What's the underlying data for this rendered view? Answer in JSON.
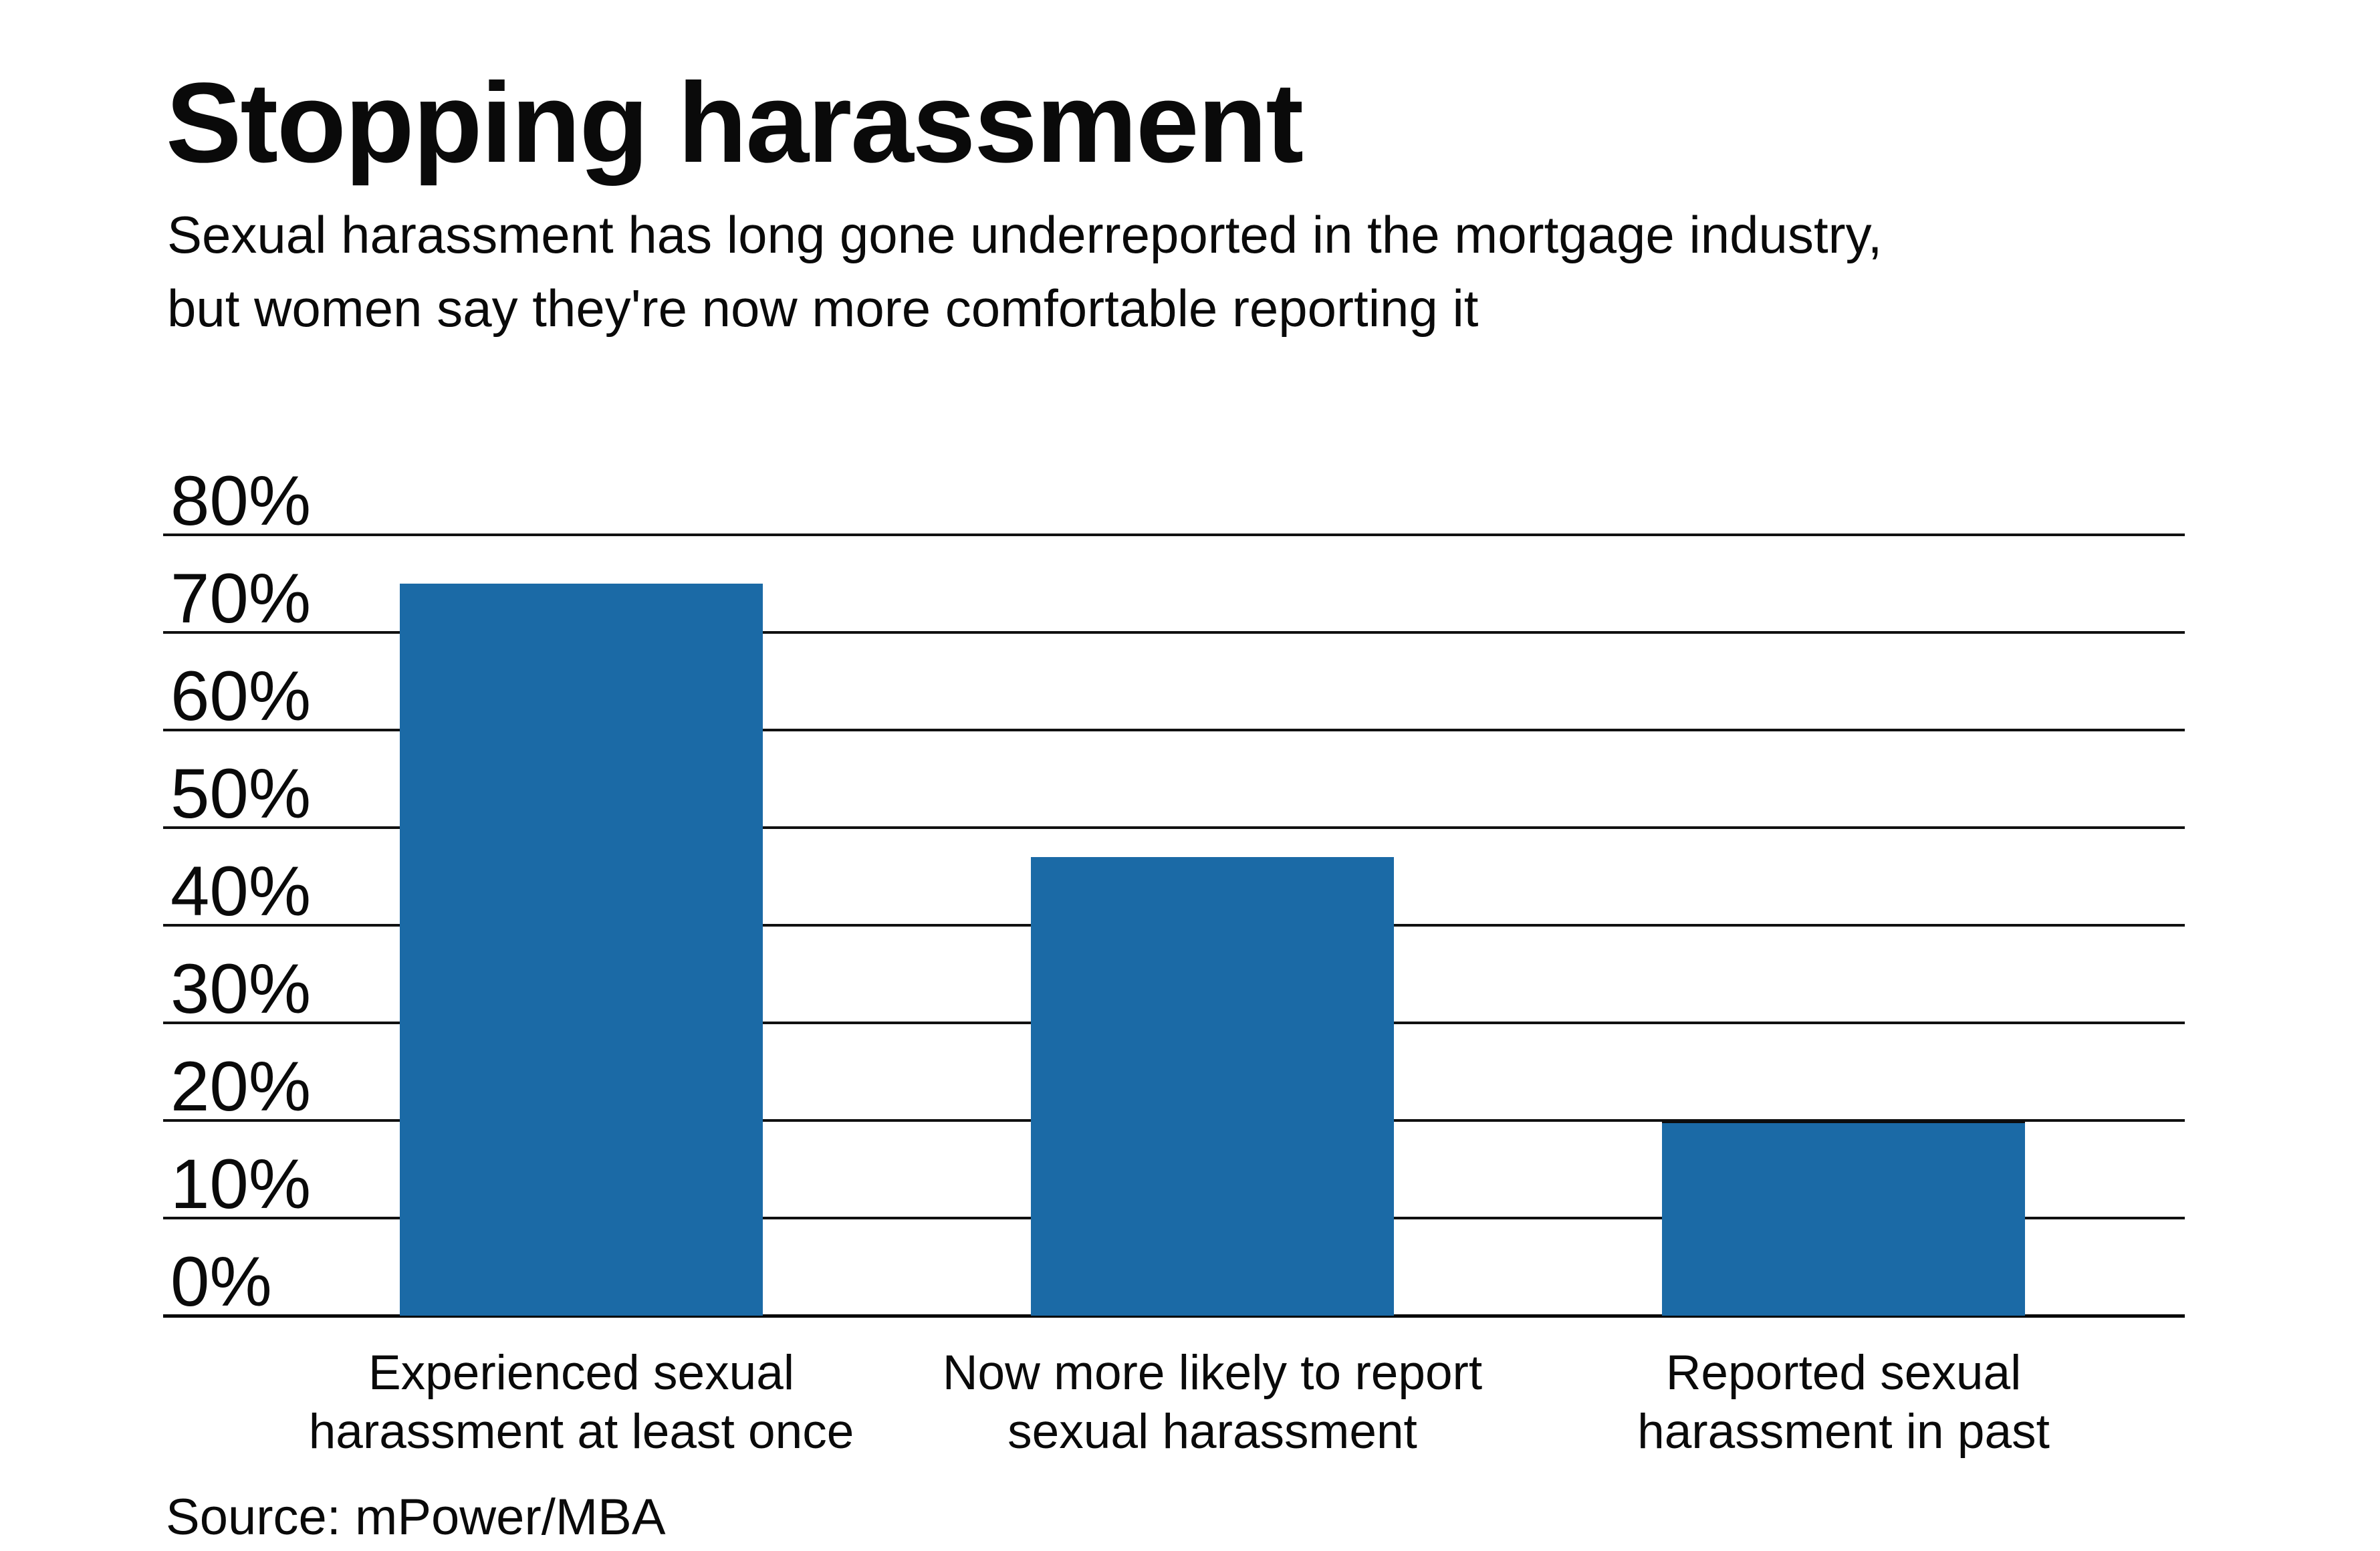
{
  "header": {
    "title": "Stopping harassment",
    "subtitle": "Sexual harassment has long gone underreported in the mortgage industry, but women say they're now more comfortable reporting it"
  },
  "source_note": "Source: mPower/MBA",
  "chart_data": {
    "type": "bar",
    "title": "Stopping harassment",
    "subtitle": "Sexual harassment has long gone underreported in the mortgage industry, but women say they're now more comfortable reporting it",
    "categories": [
      "Experienced sexual harassment at least once",
      "Now more likely to report sexual harassment",
      "Reported sexual harassment in past"
    ],
    "values": [
      75,
      47,
      20
    ],
    "unit": "%",
    "xlabel": "",
    "ylabel": "",
    "ylim": [
      0,
      80
    ],
    "ytick_step": 10,
    "ytick_labels": [
      "0%",
      "10%",
      "20%",
      "30%",
      "40%",
      "50%",
      "60%",
      "70%",
      "80%"
    ],
    "grid": true,
    "legend": "none",
    "bar_color": "#1b6aa6",
    "axis_color": "#000000",
    "text_color": "#0a0a0a",
    "background_color": "#ffffff",
    "source": "Source: mPower/MBA"
  }
}
